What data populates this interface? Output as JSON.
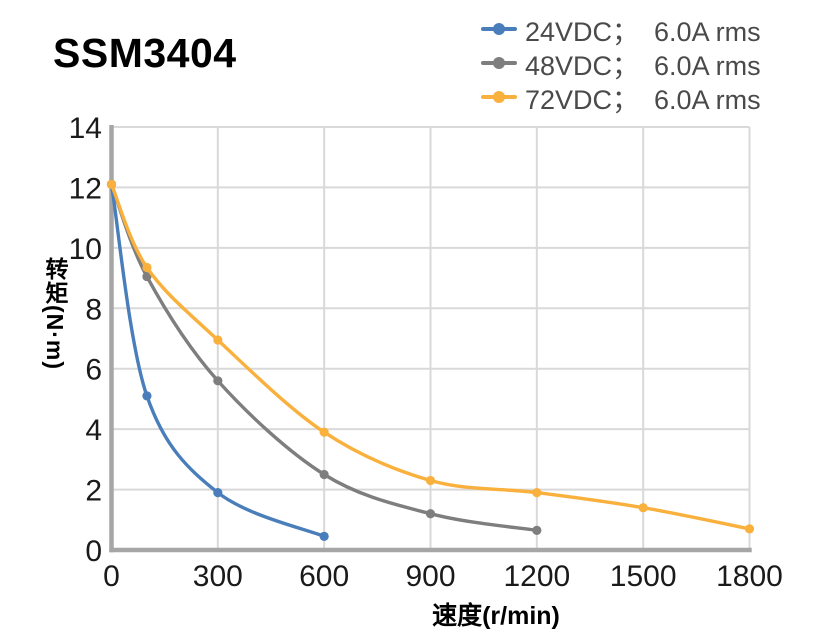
{
  "title": "SSM3404",
  "chart_data": {
    "type": "line",
    "title": "SSM3404",
    "xlabel": "速度(r/min)",
    "ylabel": "转矩(N·m)",
    "xlim": [
      0,
      1800
    ],
    "ylim": [
      0,
      14
    ],
    "xticks": [
      0,
      300,
      600,
      900,
      1200,
      1500,
      1800
    ],
    "yticks": [
      0,
      2,
      4,
      6,
      8,
      10,
      12,
      14
    ],
    "grid": true,
    "legend_position": "top-right",
    "axis_color": "#a6a6a6",
    "grid_color": "#d9d9d9",
    "series": [
      {
        "name": "24VDC；  6.0A rms",
        "color": "#4a7ebb",
        "points": [
          [
            0,
            12.1
          ],
          [
            100,
            5.1
          ],
          [
            300,
            1.9
          ],
          [
            600,
            0.45
          ]
        ]
      },
      {
        "name": "48VDC；  6.0A rms",
        "color": "#7e7e7e",
        "points": [
          [
            0,
            12.1
          ],
          [
            100,
            9.05
          ],
          [
            300,
            5.6
          ],
          [
            600,
            2.5
          ],
          [
            900,
            1.2
          ],
          [
            1200,
            0.65
          ]
        ]
      },
      {
        "name": "72VDC；  6.0A rms",
        "color": "#f9b03d",
        "points": [
          [
            0,
            12.1
          ],
          [
            100,
            9.35
          ],
          [
            300,
            6.95
          ],
          [
            600,
            3.9
          ],
          [
            900,
            2.3
          ],
          [
            1200,
            1.9
          ],
          [
            1500,
            1.4
          ],
          [
            1800,
            0.7
          ]
        ]
      }
    ]
  }
}
